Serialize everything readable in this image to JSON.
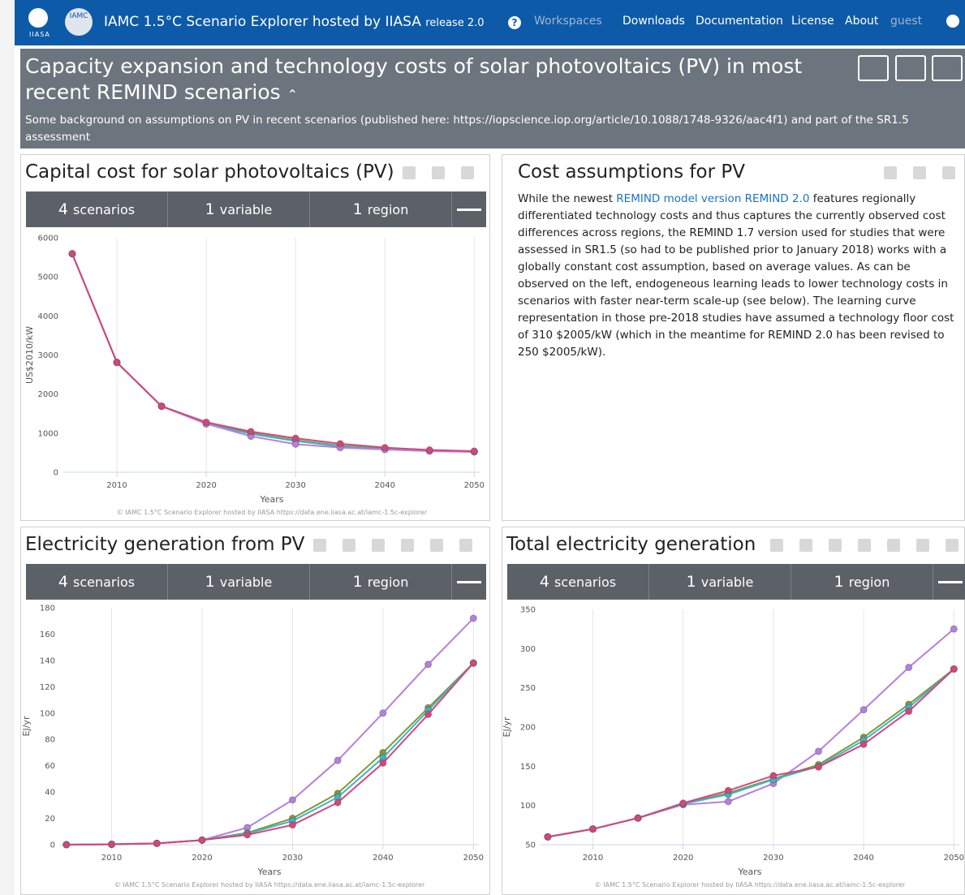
{
  "navbar": {
    "logo_text": "IIASA",
    "logo2_text": "IAMC",
    "title": "IAMC 1.5°C Scenario Explorer hosted by IIASA",
    "release": "release 2.0",
    "items": [
      "Workspaces",
      "Downloads",
      "Documentation",
      "License",
      "About",
      "guest"
    ]
  },
  "dashboard": {
    "title": "Capacity expansion and technology costs of solar photovoltaics (PV) in most recent REMIND scenarios",
    "description": "Some background on assumptions on PV in recent scenarios (published here: https://iopscience.iop.org/article/10.1088/1748-9326/aac4f1) and part of the SR1.5 assessment"
  },
  "text_panel": {
    "title": "Cost assumptions for PV",
    "body": [
      "While the newest ",
      "REMIND model version REMIND 2.0",
      " features regionally differentiated technology costs and thus captures the currently observed cost differences across regions, the REMIND 1.7 version used for studies that were assessed in SR1.5 (so had to be published prior to January 2018) works with a globally constant cost assumption, based on average values. As can be observed on the left, endogeneous learning leads to lower technology costs in scenarios with faster near-term scale-up (see below). The learning curve representation in those pre-2018 studies have assumed a technology floor cost of 310 $2005/kW (which in the meantime for REMIND 2.0 has been revised to 250 $2005/kW)."
    ]
  },
  "chart_data": [
    {
      "type": "line",
      "title": "Capital cost for solar photovoltaics (PV)",
      "filters": [
        {
          "count": 4,
          "label": "scenarios"
        },
        {
          "count": 1,
          "label": "variable"
        },
        {
          "count": 1,
          "label": "region"
        }
      ],
      "x": [
        2005,
        2010,
        2015,
        2020,
        2025,
        2030,
        2035,
        2040,
        2045,
        2050
      ],
      "series": [
        {
          "color": "#7f9a34",
          "values": [
            5590,
            2810,
            1690,
            1250,
            1000,
            820,
            680,
            600,
            550,
            530
          ]
        },
        {
          "color": "#3ab5c6",
          "values": [
            5590,
            2810,
            1690,
            1240,
            980,
            800,
            660,
            590,
            545,
            525
          ]
        },
        {
          "color": "#b57fe0",
          "values": [
            5590,
            2810,
            1690,
            1240,
            920,
            720,
            630,
            580,
            540,
            520
          ]
        },
        {
          "color": "#d6457a",
          "values": [
            5590,
            2810,
            1690,
            1280,
            1040,
            870,
            730,
            630,
            570,
            540
          ]
        }
      ],
      "xlim": [
        2004,
        2050.7
      ],
      "ylim": [
        0,
        6000
      ],
      "xticks": [
        2010,
        2020,
        2030,
        2040,
        2050
      ],
      "yticks": [
        0,
        1000,
        2000,
        3000,
        4000,
        5000,
        6000
      ],
      "xlabel": "Years",
      "ylabel": "US$2010/kW",
      "grid": "x",
      "credit": "© IAMC 1.5°C Scenario Explorer hosted by IIASA https://data.ene.iiasa.ac.at/iamc-1.5c-explorer"
    },
    {
      "type": "line",
      "title": "Electricity generation from PV",
      "filters": [
        {
          "count": 4,
          "label": "scenarios"
        },
        {
          "count": 1,
          "label": "variable"
        },
        {
          "count": 1,
          "label": "region"
        }
      ],
      "x": [
        2005,
        2010,
        2015,
        2020,
        2025,
        2030,
        2035,
        2040,
        2045,
        2050
      ],
      "series": [
        {
          "color": "#b57fe0",
          "values": [
            0,
            0.3,
            1,
            3.5,
            13,
            34,
            64,
            100,
            137,
            172
          ]
        },
        {
          "color": "#7f9a34",
          "values": [
            0,
            0.3,
            1,
            3.5,
            9,
            20,
            39,
            70,
            104,
            138
          ]
        },
        {
          "color": "#3ab5c6",
          "values": [
            0,
            0.3,
            1,
            3.5,
            8.5,
            18,
            36,
            66,
            102,
            138
          ]
        },
        {
          "color": "#d6457a",
          "values": [
            0,
            0.3,
            1,
            3.5,
            7.5,
            15,
            32,
            62,
            99,
            138
          ]
        }
      ],
      "xlim": [
        2004.3,
        2050.6
      ],
      "ylim": [
        0,
        180
      ],
      "xticks": [
        2010,
        2020,
        2030,
        2040,
        2050
      ],
      "yticks": [
        0,
        20,
        40,
        60,
        80,
        100,
        120,
        140,
        160,
        180
      ],
      "xlabel": "Years",
      "ylabel": "EJ/yr",
      "grid": "x",
      "credit": "© IAMC 1.5°C Scenario Explorer hosted by IIASA https://data.ene.iiasa.ac.at/iamc-1.5c-explorer"
    },
    {
      "type": "line",
      "title": "Total electricity generation",
      "filters": [
        {
          "count": 4,
          "label": "scenarios"
        },
        {
          "count": 1,
          "label": "variable"
        },
        {
          "count": 1,
          "label": "region"
        }
      ],
      "x": [
        2005,
        2010,
        2015,
        2020,
        2025,
        2030,
        2035,
        2040,
        2045,
        2050
      ],
      "series": [
        {
          "color": "#b57fe0",
          "values": [
            60,
            70,
            84,
            101,
            105,
            128,
            169,
            222,
            276,
            325
          ]
        },
        {
          "color": "#7f9a34",
          "values": [
            60,
            70,
            84,
            102,
            116,
            134,
            152,
            187,
            229,
            274
          ]
        },
        {
          "color": "#3ab5c6",
          "values": [
            60,
            70,
            84,
            102,
            114,
            133,
            150,
            183,
            225,
            274
          ]
        },
        {
          "color": "#d6457a",
          "values": [
            60,
            70,
            84,
            103,
            119,
            138,
            149,
            178,
            220,
            274
          ]
        }
      ],
      "xlim": [
        2004.2,
        2050.6
      ],
      "ylim": [
        50,
        350
      ],
      "xticks": [
        2010,
        2020,
        2030,
        2040,
        2050
      ],
      "yticks": [
        50,
        100,
        150,
        200,
        250,
        300,
        350
      ],
      "xlabel": "Years",
      "ylabel": "EJ/yr",
      "grid": "x",
      "credit": "© IAMC 1.5°C Scenario Explorer hosted by IIASA https://data.ene.iiasa.ac.at/iamc-1.5c-explorer"
    }
  ]
}
